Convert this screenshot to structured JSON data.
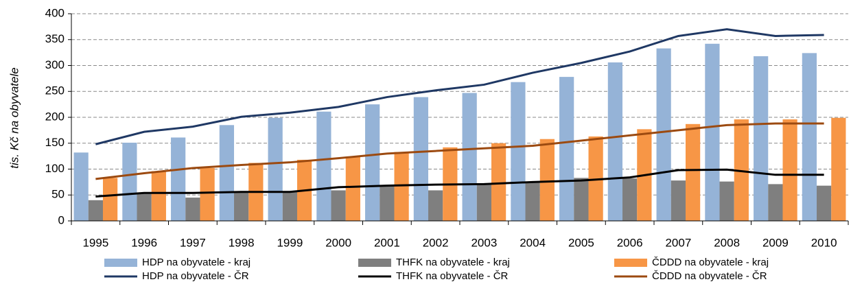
{
  "chart_data": {
    "type": "bar",
    "y_label": "tis. Kč na obyvatele",
    "categories": [
      "1995",
      "1996",
      "1997",
      "1998",
      "1999",
      "2000",
      "2001",
      "2002",
      "2003",
      "2004",
      "2005",
      "2006",
      "2007",
      "2008",
      "2009",
      "2010"
    ],
    "ylim": [
      0,
      400
    ],
    "yticks": [
      0,
      50,
      100,
      150,
      200,
      250,
      300,
      350,
      400
    ],
    "grid": true,
    "series": [
      {
        "name": "HDP na obyvatele - kraj",
        "type": "bar",
        "color": "#95b3d7",
        "values": [
          132,
          151,
          161,
          185,
          199,
          211,
          225,
          239,
          247,
          268,
          278,
          306,
          333,
          342,
          318,
          324
        ]
      },
      {
        "name": "THFK na obyvatele - kraj",
        "type": "bar",
        "color": "#7f7f7f",
        "values": [
          40,
          53,
          45,
          57,
          57,
          59,
          68,
          59,
          72,
          75,
          83,
          82,
          78,
          76,
          71,
          68
        ]
      },
      {
        "name": "ČDDD na obyvatele - kraj",
        "type": "bar",
        "color": "#f79646",
        "values": [
          83,
          96,
          102,
          112,
          118,
          124,
          133,
          142,
          150,
          158,
          163,
          177,
          187,
          196,
          196,
          199
        ]
      },
      {
        "name": "HDP na obyvatele - ČR",
        "type": "line",
        "color": "#1f3864",
        "values": [
          148,
          172,
          182,
          201,
          209,
          220,
          239,
          252,
          263,
          286,
          305,
          327,
          357,
          370,
          357,
          359
        ]
      },
      {
        "name": "THFK na obyvatele - ČR",
        "type": "line",
        "color": "#000000",
        "values": [
          47,
          54,
          54,
          56,
          56,
          65,
          68,
          70,
          71,
          75,
          78,
          84,
          98,
          99,
          89,
          89
        ]
      },
      {
        "name": "ČDDD na obyvatele - ČR",
        "type": "line",
        "color": "#9c4a10",
        "values": [
          81,
          92,
          102,
          108,
          113,
          121,
          130,
          135,
          140,
          145,
          155,
          165,
          175,
          185,
          188,
          188
        ]
      }
    ]
  }
}
